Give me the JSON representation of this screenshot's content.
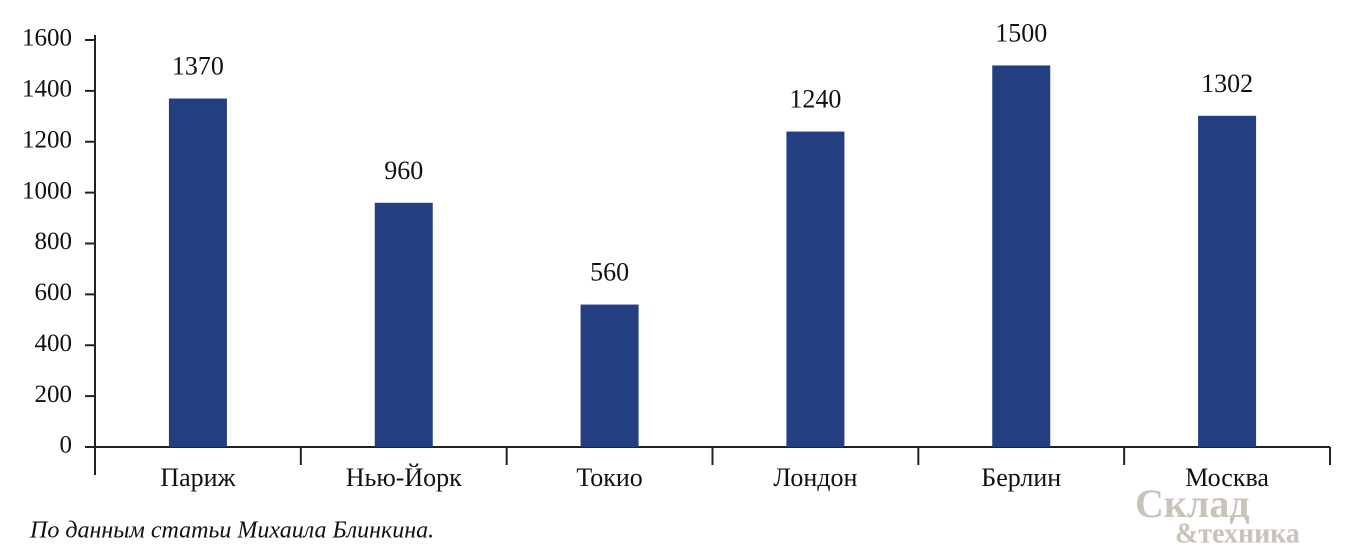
{
  "chart_data": {
    "type": "bar",
    "categories": [
      "Париж",
      "Нью-Йорк",
      "Токио",
      "Лондон",
      "Берлин",
      "Москва"
    ],
    "values": [
      1370,
      960,
      560,
      1240,
      1500,
      1302
    ],
    "color": "#243f80",
    "ylim": [
      0,
      1600
    ],
    "yticks": [
      0,
      200,
      400,
      600,
      800,
      1000,
      1200,
      1400,
      1600
    ],
    "grid": false,
    "note": "По данным статьи Михаила Блинкина.",
    "watermark": [
      "Склад",
      "&техника"
    ]
  }
}
